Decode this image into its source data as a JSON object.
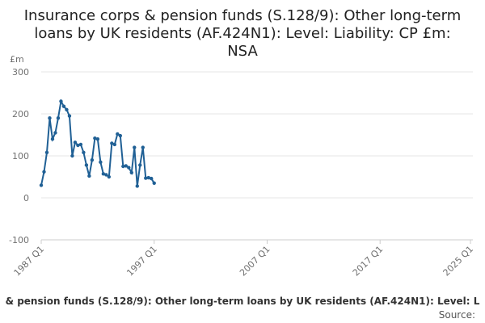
{
  "chart_data": {
    "type": "line",
    "title": [
      "Insurance corps & pension funds (S.128/9): Other long-term",
      "loans by UK residents (AF.424N1): Level: Liability: CP £m:",
      "NSA"
    ],
    "y_label": "£m",
    "footer": "& pension funds (S.128/9): Other long-term loans by UK residents (AF.424N1): Level: L",
    "source": "Source:",
    "x": [
      1987,
      1987.25,
      1987.5,
      1987.75,
      1988,
      1988.25,
      1988.5,
      1988.75,
      1989,
      1989.25,
      1989.5,
      1989.75,
      1990,
      1990.25,
      1990.5,
      1990.75,
      1991,
      1991.25,
      1991.5,
      1991.75,
      1992,
      1992.25,
      1992.5,
      1992.75,
      1993,
      1993.25,
      1993.5,
      1993.75,
      1994,
      1994.25,
      1994.5,
      1994.75,
      1995,
      1995.25,
      1995.5,
      1995.75,
      1996,
      1996.25,
      1996.5,
      1996.75,
      1997
    ],
    "series": [
      {
        "name": "£m",
        "color": "#206095",
        "values": [
          30,
          62,
          108,
          190,
          140,
          155,
          190,
          230,
          218,
          210,
          195,
          100,
          132,
          125,
          127,
          108,
          78,
          52,
          90,
          142,
          140,
          85,
          57,
          55,
          50,
          130,
          127,
          152,
          148,
          75,
          76,
          72,
          60,
          120,
          28,
          78,
          120,
          47,
          48,
          46,
          35
        ]
      }
    ],
    "xlim": [
      1987,
      2025
    ],
    "xticks": [
      {
        "value": 1987,
        "label": "1987 Q1"
      },
      {
        "value": 1997,
        "label": "1997 Q1"
      },
      {
        "value": 2007,
        "label": "2007 Q1"
      },
      {
        "value": 2017,
        "label": "2017 Q1"
      },
      {
        "value": 2025,
        "label": "2025 Q1"
      }
    ],
    "ylim": [
      -100,
      300
    ],
    "yticks": [
      -100,
      0,
      100,
      200,
      300
    ],
    "grid": true
  }
}
